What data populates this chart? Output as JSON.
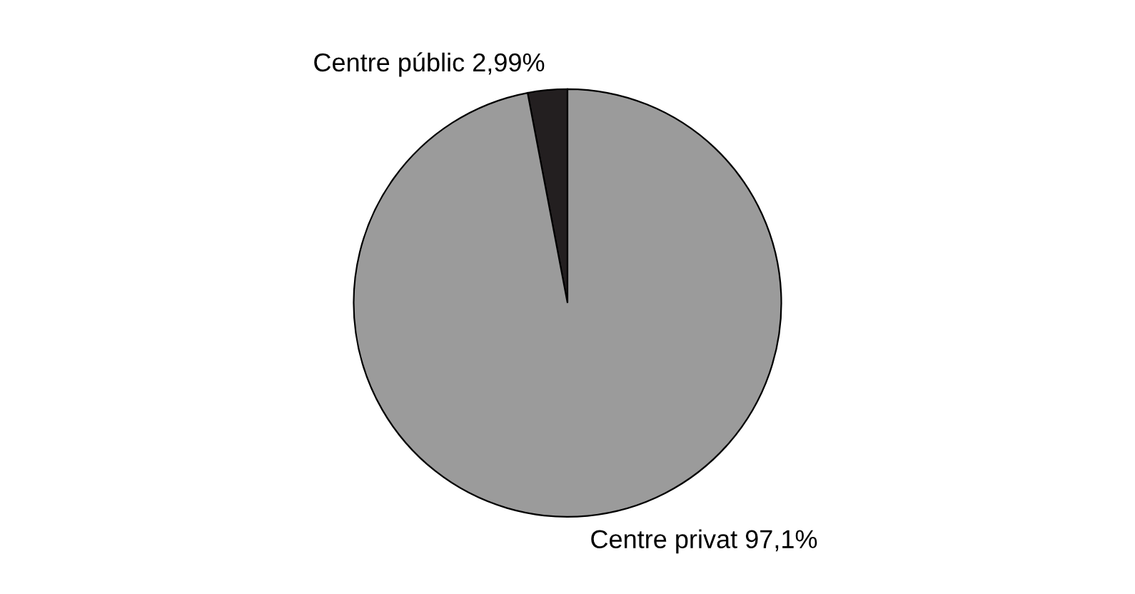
{
  "chart_data": {
    "type": "pie",
    "categories": [
      "Centre públic",
      "Centre privat"
    ],
    "values": [
      2.99,
      97.1
    ],
    "value_labels": [
      "2,99%",
      "97,1%"
    ],
    "colors": [
      "#231f20",
      "#9b9b9b"
    ],
    "legend": false
  }
}
